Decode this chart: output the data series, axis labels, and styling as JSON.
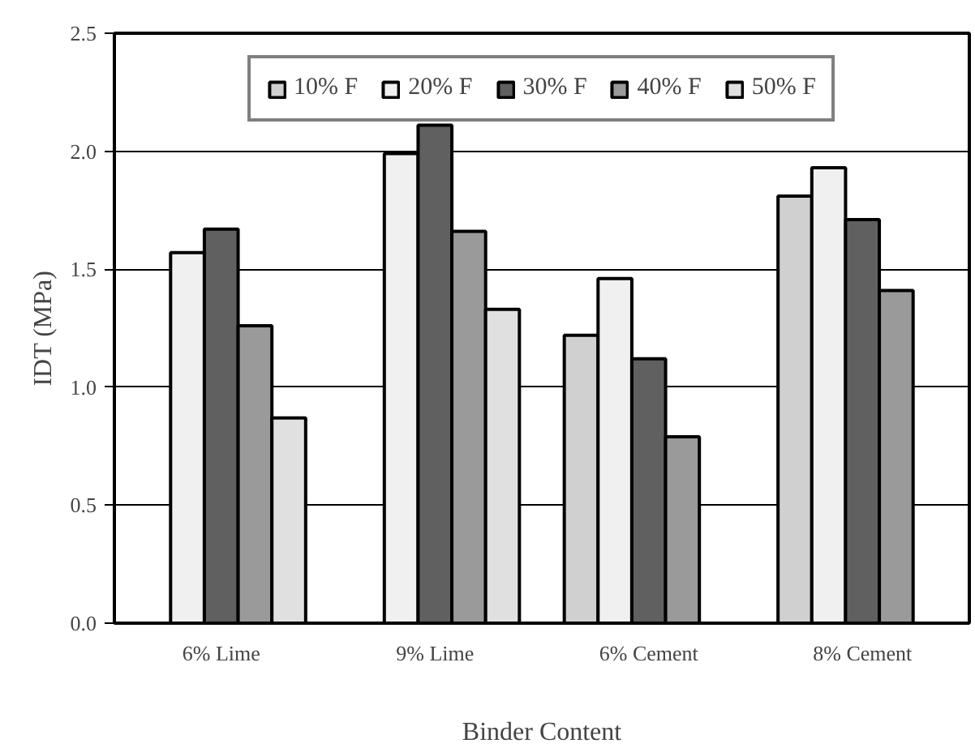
{
  "chart_data": {
    "type": "bar",
    "xlabel": "Binder Content",
    "ylabel": "IDT (MPa)",
    "categories": [
      "6% Lime",
      "9% Lime",
      "6% Cement",
      "8% Cement"
    ],
    "series": [
      {
        "name": "10% F",
        "color": "#d0d0d0",
        "values": [
          null,
          null,
          1.22,
          1.81
        ]
      },
      {
        "name": "20% F",
        "color": "#f0f0f0",
        "values": [
          1.57,
          1.99,
          1.46,
          1.93
        ]
      },
      {
        "name": "30% F",
        "color": "#606060",
        "values": [
          1.67,
          2.11,
          1.12,
          1.71
        ]
      },
      {
        "name": "40% F",
        "color": "#9a9a9a",
        "values": [
          1.26,
          1.66,
          0.79,
          1.41
        ]
      },
      {
        "name": "50% F",
        "color": "#e0e0e0",
        "values": [
          0.87,
          1.33,
          null,
          null
        ]
      }
    ],
    "ylim": [
      0,
      2.5
    ],
    "yticks": [
      {
        "value": 0,
        "label": "0.0"
      },
      {
        "value": 0.5,
        "label": "0.5"
      },
      {
        "value": 1,
        "label": "1.0"
      },
      {
        "value": 1.5,
        "label": "1.5"
      },
      {
        "value": 2,
        "label": "2.0"
      },
      {
        "value": 2.5,
        "label": "2.5"
      }
    ],
    "grid": "y",
    "legend": "top"
  }
}
